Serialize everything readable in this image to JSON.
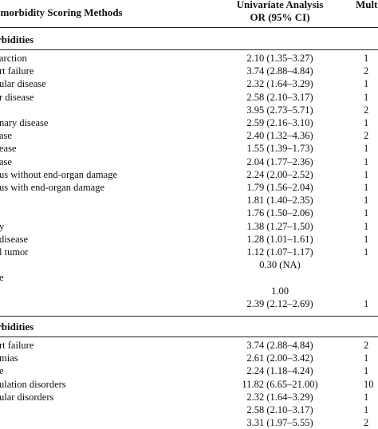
{
  "header": {
    "method": "omorbidity Scoring Methods",
    "univariate_line1": "Univariate Analysis",
    "univariate_line2": "OR (95% CI)",
    "multi": "Mult"
  },
  "sections": [
    {
      "title": "rbidities",
      "rows": [
        {
          "label": "arction",
          "uni": "2.10 (1.35–3.27)",
          "mv": "1"
        },
        {
          "label": "rt failure",
          "uni": "3.74 (2.88–4.84)",
          "mv": "2"
        },
        {
          "label": "ular disease",
          "uni": "2.32 (1.64–3.29)",
          "mv": "1"
        },
        {
          "label": "r disease",
          "uni": "2.58 (2.10–3.17)",
          "mv": "1"
        },
        {
          "label": "",
          "uni": "3.95 (2.73–5.71)",
          "mv": "2"
        },
        {
          "label": "nary disease",
          "uni": "2.59 (2.16–3.10)",
          "mv": "1"
        },
        {
          "label": "ase",
          "uni": "2.40 (1.32–4.36)",
          "mv": "2"
        },
        {
          "label": "ease",
          "uni": "1.55 (1.39–1.73)",
          "mv": "1"
        },
        {
          "label": "ase",
          "uni": "2.04 (1.77–2.36)",
          "mv": "1"
        },
        {
          "label": "us without end-organ damage",
          "uni": "2.24 (2.00–2.52)",
          "mv": "1"
        },
        {
          "label": "us with end-organ damage",
          "uni": "1.79 (1.56–2.04)",
          "mv": "1"
        },
        {
          "label": "",
          "uni": "1.81 (1.40–2.35)",
          "mv": "1"
        },
        {
          "label": "",
          "uni": "1.76 (1.50–2.06)",
          "mv": "1"
        },
        {
          "label": "y",
          "uni": "1.38 (1.27–1.50)",
          "mv": "1"
        },
        {
          "label": "disease",
          "uni": "1.28 (1.01–1.61)",
          "mv": "1"
        },
        {
          "label": "l tumor",
          "uni": "1.12 (1.07–1.17)",
          "mv": "1"
        },
        {
          "label": "",
          "uni": "0.30 (NA)",
          "mv": ""
        },
        {
          "label": "e",
          "uni": "",
          "mv": ""
        },
        {
          "label": "",
          "uni": "1.00",
          "mv": ""
        },
        {
          "label": "",
          "uni": "2.39 (2.12–2.69)",
          "mv": "1"
        }
      ]
    },
    {
      "title": "rbidities",
      "rows": [
        {
          "label": "rt failure",
          "uni": "3.74 (2.88–4.84)",
          "mv": "2"
        },
        {
          "label": "mias",
          "uni": "2.61 (2.00–3.42)",
          "mv": "1"
        },
        {
          "label": "e",
          "uni": "2.24 (1.18–4.24)",
          "mv": "1"
        },
        {
          "label": "ulation disorders",
          "uni": "11.82 (6.65–21.00)",
          "mv": "10"
        },
        {
          "label": "ular disorders",
          "uni": "2.32 (1.64–3.29)",
          "mv": "1"
        },
        {
          "label": "",
          "uni": "2.58 (2.10–3.17)",
          "mv": "1"
        },
        {
          "label": "",
          "uni": "3.31 (1.97–5.55)",
          "mv": "2"
        }
      ]
    }
  ]
}
